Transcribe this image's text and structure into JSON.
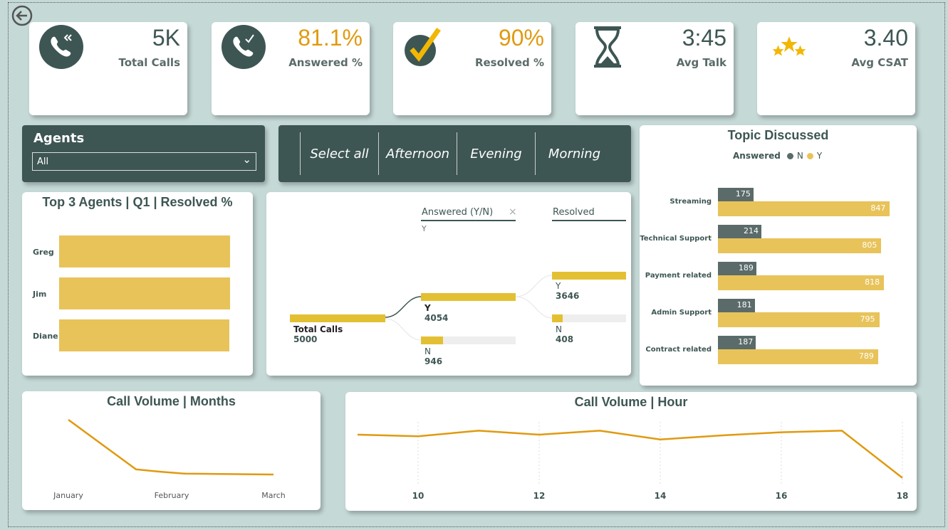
{
  "kpis": [
    {
      "value": "5K",
      "label": "Total Calls",
      "icon": "phone-incoming-icon",
      "color": "#3d5653"
    },
    {
      "value": "81.1%",
      "label": "Answered %",
      "icon": "phone-check-icon",
      "color": "#e09a10"
    },
    {
      "value": "90%",
      "label": "Resolved %",
      "icon": "checkmark-icon",
      "color": "#e09a10"
    },
    {
      "value": "3:45",
      "label": "Avg Talk",
      "icon": "hourglass-icon",
      "color": "#3d5653"
    },
    {
      "value": "3.40",
      "label": "Avg CSAT",
      "icon": "stars-icon",
      "color": "#3d5653"
    }
  ],
  "agents_slicer": {
    "title": "Agents",
    "selected": "All"
  },
  "shift_slicer": {
    "options": [
      "Select all",
      "Afternoon",
      "Evening",
      "Morning"
    ]
  },
  "top_agents": {
    "title": "Top 3 Agents | Q1 | Resolved %",
    "agents": [
      "Greg",
      "Jim",
      "Diane"
    ],
    "values": [
      100,
      100,
      99.5
    ]
  },
  "decomp_tree": {
    "col1": "Answered (Y/N)",
    "col1_filter": "Y",
    "col2": "Resolved",
    "root_label": "Total Calls",
    "root_value": "5000",
    "ans_y_label": "Y",
    "ans_y_value": "4054",
    "ans_n_label": "N",
    "ans_n_value": "946",
    "res_y_label": "Y",
    "res_y_value": "3646",
    "res_n_label": "N",
    "res_n_value": "408"
  },
  "topic": {
    "title": "Topic Discussed",
    "legend_title": "Answered",
    "legend": [
      "N",
      "Y"
    ],
    "colors": [
      "#5a6b69",
      "#e8c35a"
    ],
    "categories": [
      "Streaming",
      "Technical Support",
      "Payment related",
      "Admin Support",
      "Contract related"
    ],
    "n": [
      175,
      214,
      189,
      181,
      187
    ],
    "y": [
      847,
      805,
      818,
      795,
      789
    ]
  },
  "chart_data": [
    {
      "type": "line",
      "title": "Call Volume | Months",
      "categories": [
        "January",
        "February",
        "March"
      ],
      "values": [
        1900,
        1560,
        1550
      ],
      "ylim": [
        1500,
        2000
      ]
    },
    {
      "type": "line",
      "title": "Call Volume | Hour",
      "x": [
        9,
        10,
        11,
        12,
        13,
        14,
        15,
        16,
        17,
        18
      ],
      "values": [
        520,
        510,
        545,
        520,
        545,
        490,
        515,
        535,
        545,
        250
      ],
      "xticks": [
        "10",
        "12",
        "14",
        "16",
        "18"
      ],
      "ylim": [
        200,
        600
      ]
    }
  ]
}
